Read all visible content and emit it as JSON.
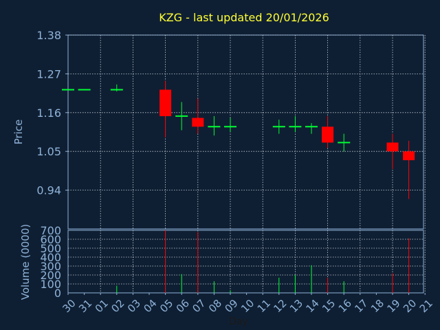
{
  "chart_data": {
    "type": "candlestick",
    "title": "KZG - last updated 20/01/2026",
    "xlabel": "Day",
    "price_panel": {
      "ylabel": "Price",
      "ylim": [
        0.83,
        1.38
      ],
      "yticks": [
        "1.38",
        "1.27",
        "1.16",
        "1.05",
        "0.94"
      ],
      "ytick_values": [
        1.38,
        1.27,
        1.16,
        1.05,
        0.94
      ],
      "grid": true
    },
    "volume_panel": {
      "ylabel": "Volume (0000)",
      "ylim": [
        0,
        700
      ],
      "yticks": [
        "700",
        "600",
        "500",
        "400",
        "300",
        "200",
        "100",
        "0"
      ],
      "ytick_values": [
        700,
        600,
        500,
        400,
        300,
        200,
        100,
        0
      ],
      "grid": true
    },
    "categories": [
      "30",
      "31",
      "01",
      "02",
      "03",
      "04",
      "05",
      "06",
      "07",
      "08",
      "09",
      "10",
      "11",
      "12",
      "13",
      "14",
      "15",
      "16",
      "17",
      "18",
      "19",
      "20",
      "21"
    ],
    "candles": [
      {
        "day": "30",
        "open": 1.225,
        "high": 1.225,
        "low": 1.225,
        "close": 1.225,
        "volume": 0
      },
      {
        "day": "31",
        "open": 1.225,
        "high": 1.225,
        "low": 1.225,
        "close": 1.225,
        "volume": 0
      },
      {
        "day": "02",
        "open": 1.225,
        "high": 1.24,
        "low": 1.22,
        "close": 1.225,
        "volume": 80
      },
      {
        "day": "05",
        "open": 1.225,
        "high": 1.25,
        "low": 1.09,
        "close": 1.15,
        "volume": 700
      },
      {
        "day": "06",
        "open": 1.15,
        "high": 1.19,
        "low": 1.11,
        "close": 1.15,
        "volume": 210
      },
      {
        "day": "07",
        "open": 1.145,
        "high": 1.2,
        "low": 1.1,
        "close": 1.12,
        "volume": 680
      },
      {
        "day": "08",
        "open": 1.12,
        "high": 1.15,
        "low": 1.095,
        "close": 1.12,
        "volume": 130
      },
      {
        "day": "09",
        "open": 1.12,
        "high": 1.145,
        "low": 1.105,
        "close": 1.12,
        "volume": 30
      },
      {
        "day": "12",
        "open": 1.12,
        "high": 1.14,
        "low": 1.1,
        "close": 1.12,
        "volume": 170
      },
      {
        "day": "13",
        "open": 1.12,
        "high": 1.15,
        "low": 1.105,
        "close": 1.12,
        "volume": 200
      },
      {
        "day": "14",
        "open": 1.12,
        "high": 1.13,
        "low": 1.1,
        "close": 1.12,
        "volume": 310
      },
      {
        "day": "15",
        "open": 1.12,
        "high": 1.15,
        "low": 1.06,
        "close": 1.075,
        "volume": 170
      },
      {
        "day": "16",
        "open": 1.075,
        "high": 1.1,
        "low": 1.05,
        "close": 1.075,
        "volume": 130
      },
      {
        "day": "19",
        "open": 1.075,
        "high": 1.1,
        "low": 1.0,
        "close": 1.05,
        "volume": 220
      },
      {
        "day": "20",
        "open": 1.05,
        "high": 1.08,
        "low": 0.915,
        "close": 1.025,
        "volume": 610
      }
    ],
    "colors": {
      "background": "#0f1f33",
      "axis": "#8fb3d9",
      "grid": "#c8d2dc",
      "title": "#ffff33",
      "up": "#00ff33",
      "down": "#ff0000",
      "label": "#8fb3d9"
    }
  }
}
